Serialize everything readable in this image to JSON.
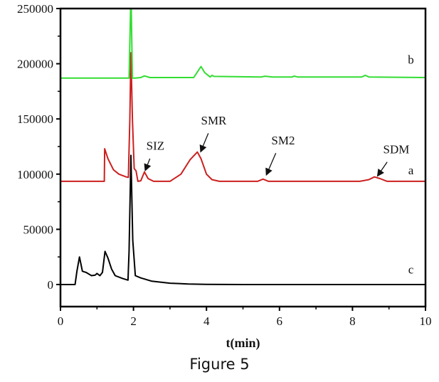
{
  "caption": "Figure 5",
  "chart_data": {
    "type": "line",
    "title": "",
    "xlabel": "t(min)",
    "ylabel": "",
    "xlim": [
      0,
      10
    ],
    "ylim": [
      -20000,
      250000
    ],
    "xticks": [
      0,
      2,
      4,
      6,
      8,
      10
    ],
    "yticks": [
      0,
      50000,
      100000,
      150000,
      200000,
      250000
    ],
    "xtick_labels": [
      "0",
      "2",
      "4",
      "6",
      "8",
      "10"
    ],
    "ytick_labels": [
      "0",
      "50000",
      "100000",
      "150000",
      "200000",
      "250000"
    ],
    "grid": false,
    "series": [
      {
        "name": "c",
        "color": "#000000",
        "x": [
          0,
          0.4,
          0.45,
          0.52,
          0.6,
          0.7,
          0.85,
          0.95,
          1.0,
          1.08,
          1.15,
          1.22,
          1.3,
          1.4,
          1.5,
          1.7,
          1.85,
          1.88,
          1.93,
          1.98,
          2.05,
          2.2,
          2.3,
          2.5,
          3.0,
          3.5,
          4.0,
          5.0,
          10
        ],
        "y": [
          0,
          0,
          12000,
          25000,
          12000,
          11000,
          8000,
          8500,
          10000,
          8000,
          11000,
          30000,
          24000,
          14000,
          8000,
          5500,
          4000,
          30000,
          117000,
          40000,
          8000,
          6000,
          5000,
          3000,
          1200,
          500,
          200,
          0,
          0
        ]
      },
      {
        "name": "a",
        "color": "#cc1f1f",
        "x": [
          0,
          1.2,
          1.21,
          1.3,
          1.45,
          1.6,
          1.8,
          1.86,
          1.9,
          1.93,
          1.97,
          2.02,
          2.07,
          2.12,
          2.2,
          2.3,
          2.4,
          2.55,
          3.0,
          3.3,
          3.55,
          3.75,
          3.85,
          4.0,
          4.15,
          4.35,
          5.4,
          5.55,
          5.7,
          8.2,
          8.45,
          8.6,
          8.75,
          8.95,
          10
        ],
        "y": [
          93500,
          93500,
          123000,
          114000,
          104000,
          100000,
          97500,
          97000,
          150000,
          210000,
          150000,
          105000,
          103000,
          93500,
          94000,
          102000,
          96000,
          93500,
          93500,
          100000,
          113000,
          120000,
          114000,
          100000,
          95000,
          93500,
          93500,
          95500,
          93500,
          93500,
          95000,
          97500,
          96000,
          93500,
          93500
        ]
      },
      {
        "name": "b",
        "color": "#33dd33",
        "x": [
          0,
          1.88,
          1.92,
          1.94,
          1.97,
          2.05,
          2.2,
          2.3,
          2.45,
          3.65,
          3.78,
          3.85,
          3.95,
          4.1,
          4.15,
          4.2,
          5.5,
          5.6,
          5.8,
          6.35,
          6.4,
          6.5,
          8.25,
          8.35,
          8.45,
          10
        ],
        "y": [
          187000,
          187000,
          249000,
          249000,
          187000,
          187000,
          187500,
          189000,
          187500,
          187500,
          194000,
          197500,
          192000,
          188000,
          189500,
          188500,
          188000,
          188700,
          188000,
          188000,
          188800,
          188000,
          188000,
          189500,
          188000,
          187500
        ]
      }
    ],
    "curve_labels": [
      {
        "text": "b",
        "x": 9.6,
        "y": 200000
      },
      {
        "text": "a",
        "x": 9.6,
        "y": 100000
      },
      {
        "text": "c",
        "x": 9.6,
        "y": 10000
      }
    ],
    "annotations": [
      {
        "text": "SIZ",
        "x": 2.6,
        "y": 122000,
        "arrow_from": [
          2.45,
          114000
        ],
        "arrow_to": [
          2.33,
          104000
        ]
      },
      {
        "text": "SMR",
        "x": 4.2,
        "y": 145000,
        "arrow_from": [
          4.05,
          137000
        ],
        "arrow_to": [
          3.85,
          121000
        ]
      },
      {
        "text": "SM2",
        "x": 6.1,
        "y": 127000,
        "arrow_from": [
          5.9,
          119000
        ],
        "arrow_to": [
          5.65,
          100000
        ]
      },
      {
        "text": "SDM",
        "x": 9.2,
        "y": 119000,
        "arrow_from": [
          8.95,
          111000
        ],
        "arrow_to": [
          8.7,
          99000
        ]
      }
    ]
  }
}
